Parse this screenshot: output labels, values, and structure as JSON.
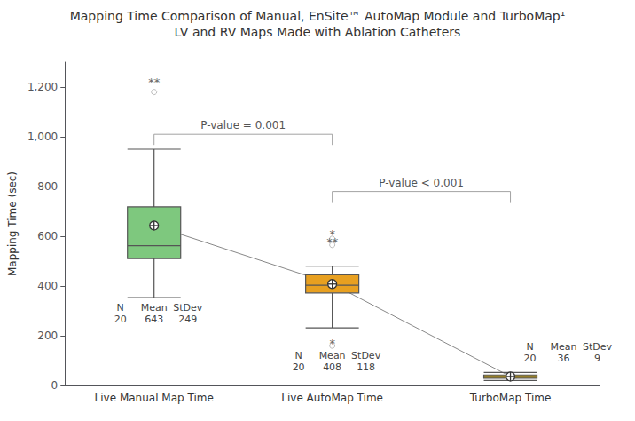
{
  "chart_data": {
    "type": "box",
    "title": "Mapping Time Comparison of Manual, EnSite™ AutoMap Module and TurboMap¹",
    "subtitle": "LV and RV Maps Made with Ablation Catheters",
    "categories": [
      "Live Manual Map Time",
      "Live AutoMap Time",
      "TurboMap Time"
    ],
    "ylabel": "Mapping Time (sec)",
    "ylim": [
      0,
      1300
    ],
    "yticks": [
      0,
      200,
      400,
      600,
      800,
      1000,
      1200
    ],
    "grid": false,
    "colors": [
      "#7ec87e",
      "#e8a020",
      "#d4a800"
    ],
    "boxes": [
      {
        "q1": 510,
        "median": 562,
        "q3": 718,
        "whisker_low": 353,
        "whisker_high": 950,
        "mean": 643,
        "outliers": [
          1180
        ],
        "n": 20,
        "stdev": 249
      },
      {
        "q1": 372,
        "median": 403,
        "q3": 445,
        "whisker_low": 232,
        "whisker_high": 480,
        "mean": 408,
        "outliers": [
          590,
          565,
          160
        ],
        "n": 20,
        "stdev": 118
      },
      {
        "q1": 29,
        "median": 35,
        "q3": 42,
        "whisker_low": 20,
        "whisker_high": 52,
        "mean": 36,
        "outliers": [],
        "n": 20,
        "stdev": 9
      }
    ],
    "stats_headers": [
      "N",
      "Mean",
      "StDev"
    ],
    "pvalue_brackets": [
      {
        "from": "Live Manual Map Time",
        "to": "Live AutoMap Time",
        "y": 1010,
        "label": "P-value = 0.001"
      },
      {
        "from": "Live AutoMap Time",
        "to": "TurboMap Time",
        "y": 780,
        "label": "P-value < 0.001"
      }
    ],
    "outlier_stars": [
      {
        "category": "Live Manual Map Time",
        "y": 1220,
        "text": "**"
      },
      {
        "category": "Live AutoMap Time",
        "y": 608,
        "text": "*"
      },
      {
        "category": "Live AutoMap Time",
        "y": 578,
        "text": "**"
      },
      {
        "category": "Live AutoMap Time",
        "y": 168,
        "text": "*"
      }
    ]
  }
}
